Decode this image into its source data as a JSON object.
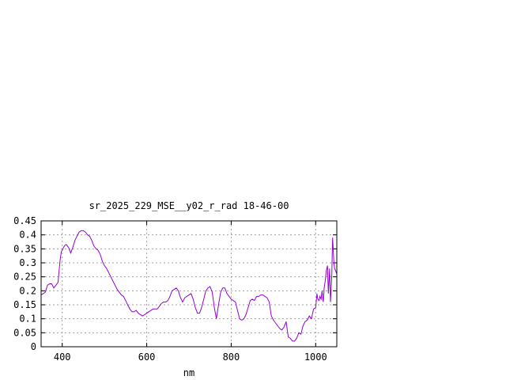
{
  "chart_data": {
    "type": "line",
    "title": "sr_2025_229_MSE__y02_r_rad 18-46-00",
    "xlabel": "nm",
    "ylabel": "",
    "xlim": [
      350,
      1050
    ],
    "ylim": [
      0,
      0.45
    ],
    "grid": true,
    "x_ticks": [
      {
        "value": 400,
        "label": "400"
      },
      {
        "value": 600,
        "label": "600"
      },
      {
        "value": 800,
        "label": "800"
      },
      {
        "value": 1000,
        "label": "1000"
      }
    ],
    "y_ticks": [
      {
        "value": 0,
        "label": "0"
      },
      {
        "value": 0.05,
        "label": "0.05"
      },
      {
        "value": 0.1,
        "label": "0.1"
      },
      {
        "value": 0.15,
        "label": "0.15"
      },
      {
        "value": 0.2,
        "label": "0.2"
      },
      {
        "value": 0.25,
        "label": "0.25"
      },
      {
        "value": 0.3,
        "label": "0.3"
      },
      {
        "value": 0.35,
        "label": "0.35"
      },
      {
        "value": 0.4,
        "label": "0.4"
      },
      {
        "value": 0.45,
        "label": "0.45"
      }
    ],
    "colors": {
      "line": "#9400d3",
      "grid": "#a0a0a0",
      "axis": "#000000"
    },
    "series": [
      {
        "x": [
          350,
          360,
          365,
          370,
          375,
          380,
          385,
          390,
          395,
          398,
          400,
          403,
          405,
          408,
          410,
          415,
          420,
          425,
          430,
          435,
          440,
          445,
          450,
          455,
          460,
          465,
          470,
          475,
          480,
          485,
          490,
          495,
          500,
          505,
          510,
          515,
          520,
          525,
          530,
          535,
          540,
          545,
          550,
          555,
          560,
          565,
          570,
          575,
          580,
          585,
          590,
          595,
          600,
          605,
          610,
          615,
          620,
          625,
          630,
          635,
          640,
          645,
          650,
          655,
          660,
          665,
          670,
          675,
          680,
          685,
          690,
          695,
          700,
          705,
          710,
          715,
          720,
          725,
          730,
          735,
          740,
          745,
          750,
          755,
          760,
          765,
          770,
          775,
          780,
          785,
          790,
          795,
          800,
          805,
          810,
          815,
          820,
          825,
          830,
          835,
          840,
          845,
          850,
          855,
          860,
          865,
          870,
          875,
          880,
          885,
          890,
          895,
          900,
          905,
          910,
          915,
          920,
          925,
          930,
          935,
          940,
          945,
          950,
          955,
          960,
          965,
          970,
          975,
          980,
          985,
          990,
          995,
          1000,
          1003,
          1005,
          1008,
          1010,
          1013,
          1015,
          1018,
          1020,
          1023,
          1025,
          1028,
          1030,
          1033,
          1035,
          1038,
          1040,
          1043,
          1045,
          1050
        ],
        "y": [
          0.185,
          0.195,
          0.22,
          0.225,
          0.225,
          0.21,
          0.22,
          0.23,
          0.31,
          0.34,
          0.345,
          0.355,
          0.36,
          0.365,
          0.365,
          0.355,
          0.335,
          0.355,
          0.38,
          0.395,
          0.41,
          0.415,
          0.415,
          0.41,
          0.4,
          0.395,
          0.38,
          0.36,
          0.35,
          0.345,
          0.33,
          0.305,
          0.29,
          0.28,
          0.265,
          0.25,
          0.235,
          0.22,
          0.205,
          0.195,
          0.185,
          0.18,
          0.165,
          0.15,
          0.135,
          0.125,
          0.125,
          0.13,
          0.12,
          0.115,
          0.11,
          0.115,
          0.12,
          0.125,
          0.13,
          0.135,
          0.135,
          0.135,
          0.145,
          0.155,
          0.16,
          0.16,
          0.165,
          0.18,
          0.2,
          0.205,
          0.21,
          0.2,
          0.175,
          0.16,
          0.175,
          0.18,
          0.185,
          0.19,
          0.17,
          0.14,
          0.12,
          0.12,
          0.14,
          0.17,
          0.2,
          0.21,
          0.215,
          0.195,
          0.14,
          0.1,
          0.15,
          0.195,
          0.21,
          0.21,
          0.19,
          0.18,
          0.17,
          0.165,
          0.16,
          0.13,
          0.1,
          0.095,
          0.1,
          0.115,
          0.14,
          0.165,
          0.17,
          0.165,
          0.18,
          0.18,
          0.185,
          0.185,
          0.18,
          0.175,
          0.16,
          0.11,
          0.095,
          0.085,
          0.075,
          0.065,
          0.06,
          0.07,
          0.09,
          0.035,
          0.03,
          0.02,
          0.02,
          0.03,
          0.05,
          0.045,
          0.075,
          0.09,
          0.095,
          0.11,
          0.1,
          0.135,
          0.14,
          0.19,
          0.17,
          0.165,
          0.18,
          0.17,
          0.2,
          0.16,
          0.21,
          0.24,
          0.27,
          0.29,
          0.19,
          0.28,
          0.16,
          0.25,
          0.39,
          0.3,
          0.28,
          0.26
        ]
      }
    ]
  }
}
